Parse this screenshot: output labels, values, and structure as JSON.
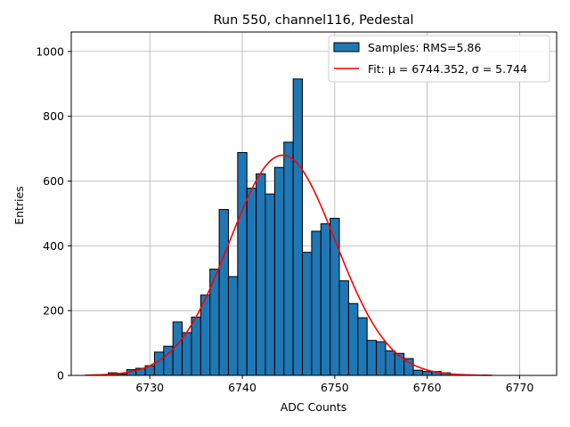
{
  "chart_data": {
    "type": "bar",
    "title": "Run 550, channel116, Pedestal",
    "xlabel": "ADC Counts",
    "ylabel": "Entries",
    "xlim": [
      6721.5,
      6774
    ],
    "ylim": [
      0,
      1060
    ],
    "xticks": [
      6730,
      6740,
      6750,
      6760,
      6770
    ],
    "yticks": [
      0,
      200,
      400,
      600,
      800,
      1000
    ],
    "grid": true,
    "legend_position": "top-right",
    "bin_width": 1,
    "series": [
      {
        "name": "Samples: RMS=5.86",
        "kind": "histogram",
        "color": "#1f77b4",
        "edgecolor": "#000000",
        "bin_centers": [
          6725,
          6726,
          6727,
          6728,
          6729,
          6730,
          6731,
          6732,
          6733,
          6734,
          6735,
          6736,
          6737,
          6738,
          6739,
          6740,
          6741,
          6742,
          6743,
          6744,
          6745,
          6746,
          6747,
          6748,
          6749,
          6750,
          6751,
          6752,
          6753,
          6754,
          6755,
          6756,
          6757,
          6758,
          6759,
          6760,
          6761,
          6762,
          6763
        ],
        "values": [
          0,
          8,
          4,
          18,
          22,
          30,
          72,
          90,
          165,
          132,
          180,
          248,
          328,
          512,
          305,
          688,
          578,
          622,
          560,
          642,
          720,
          915,
          380,
          445,
          468,
          485,
          292,
          222,
          178,
          108,
          104,
          76,
          68,
          52,
          16,
          12,
          12,
          8,
          0
        ]
      },
      {
        "name": "Fit: μ = 6744.352, σ = 5.744",
        "kind": "gaussian",
        "color": "#ff0000",
        "mu": 6744.352,
        "sigma": 5.744,
        "amplitude": 680,
        "x_range": [
          6723,
          6767
        ]
      }
    ]
  }
}
